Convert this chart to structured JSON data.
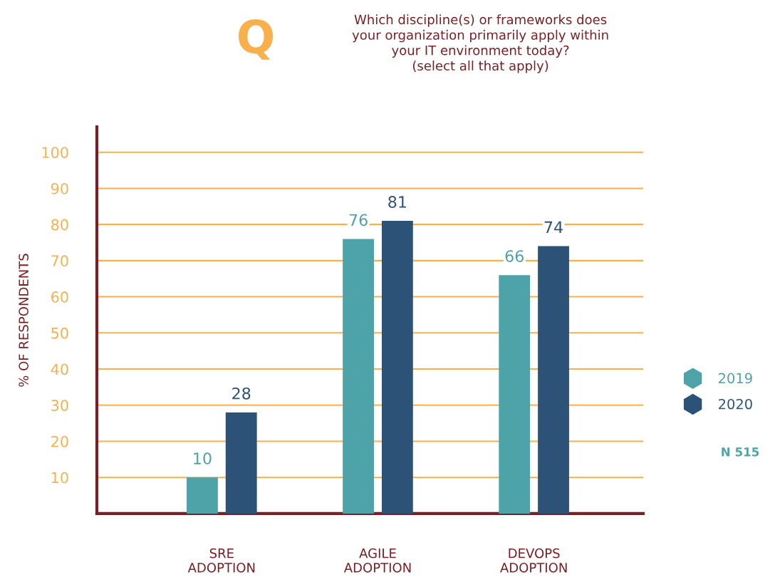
{
  "chart_data": {
    "type": "bar",
    "title": "Which discipline(s) or frameworks does\nyour organization primarily apply within\nyour IT environment today?\n(select all that apply)",
    "ylabel": "% OF RESPONDENTS",
    "categories": [
      "SRE\nADOPTION",
      "AGILE\nADOPTION",
      "DEVOPS\nADOPTION"
    ],
    "series": [
      {
        "name": "2019",
        "color": "#4ea3a8",
        "values": [
          10,
          76,
          66
        ]
      },
      {
        "name": "2020",
        "color": "#2d5277",
        "values": [
          28,
          81,
          74
        ]
      }
    ],
    "ylim": [
      0,
      107
    ],
    "yticks": [
      10,
      20,
      30,
      40,
      50,
      60,
      70,
      80,
      90,
      100
    ],
    "grid": "y",
    "legend": "right",
    "data_labels": true,
    "annotations": [
      "Q",
      "N 515"
    ]
  }
}
